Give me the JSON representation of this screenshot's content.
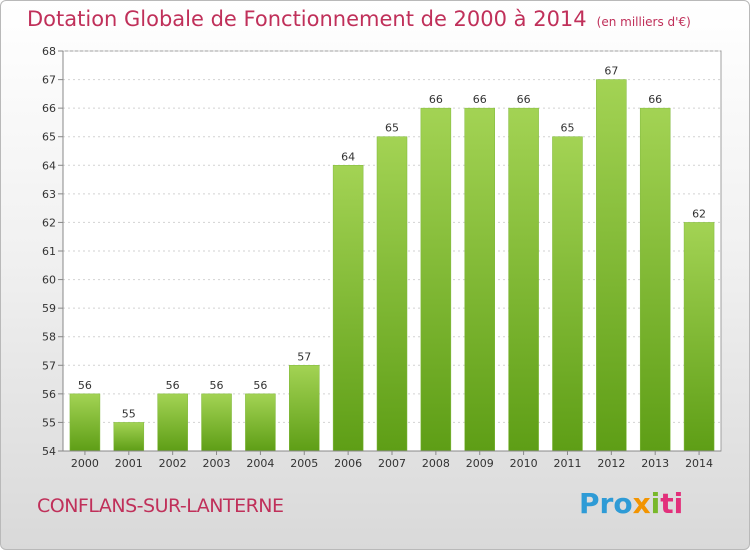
{
  "header": {
    "title": "Dotation Globale de Fonctionnement de 2000 à 2014",
    "unit": "(en milliers d'€)"
  },
  "footer": {
    "commune": "CONFLANS-SUR-LANTERNE",
    "logo": [
      "Pro",
      "x",
      "i",
      "ti"
    ]
  },
  "colors": {
    "bar_top": "#a3d354",
    "bar_bottom": "#5e9e16",
    "title": "#c0305a"
  },
  "chart_data": {
    "type": "bar",
    "title": "Dotation Globale de Fonctionnement de 2000 à 2014",
    "subtitle": "(en milliers d'€)",
    "xlabel": "",
    "ylabel": "",
    "categories": [
      "2000",
      "2001",
      "2002",
      "2003",
      "2004",
      "2005",
      "2006",
      "2007",
      "2008",
      "2009",
      "2010",
      "2011",
      "2012",
      "2013",
      "2014"
    ],
    "values": [
      56,
      55,
      56,
      56,
      56,
      57,
      64,
      65,
      66,
      66,
      66,
      65,
      67,
      66,
      62
    ],
    "ylim": [
      54,
      68
    ],
    "yticks": [
      54,
      55,
      56,
      57,
      58,
      59,
      60,
      61,
      62,
      63,
      64,
      65,
      66,
      67,
      68
    ],
    "grid": true,
    "legend": "none"
  }
}
